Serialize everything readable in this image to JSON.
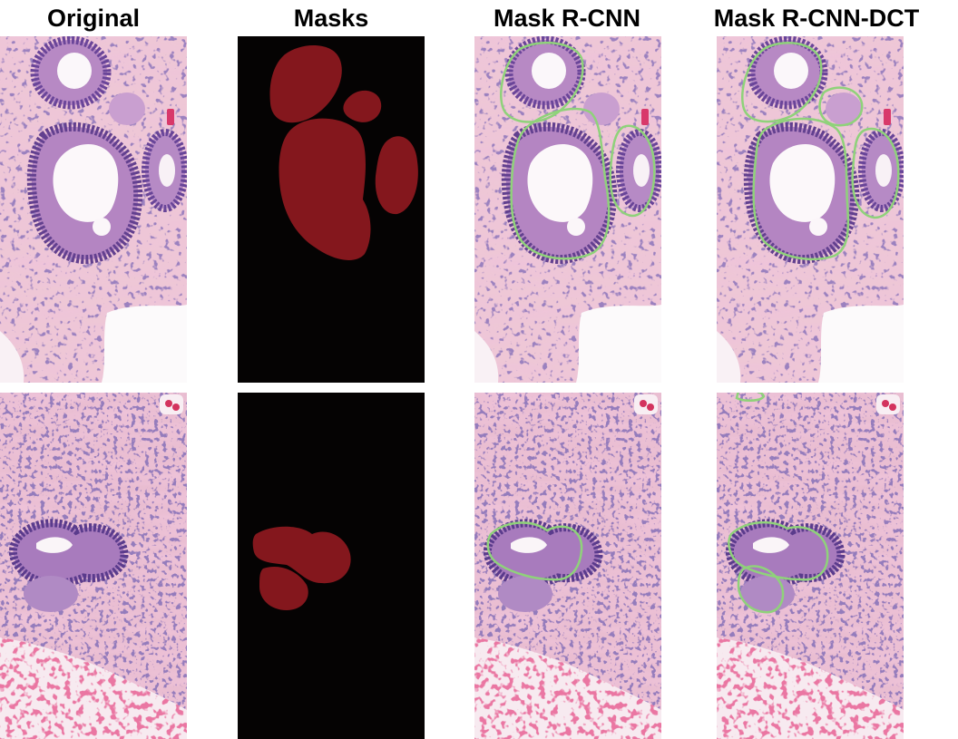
{
  "figure": {
    "columns": [
      {
        "key": "original",
        "title": "Original"
      },
      {
        "key": "masks",
        "title": "Masks"
      },
      {
        "key": "mask_rcnn",
        "title": "Mask R-CNN"
      },
      {
        "key": "mask_rcnn_dct",
        "title": "Mask R-CNN-DCT"
      }
    ],
    "rows": [
      {
        "key": "sample_1"
      },
      {
        "key": "sample_2"
      }
    ],
    "colors": {
      "tissue_pink": "#ecc3d3",
      "stroma_pink": "#e6a8c2",
      "nuclei_purple": "#5b3d8c",
      "gland_lumen": "#fbf8fa",
      "mask_background": "#050303",
      "mask_fill": "#84171d",
      "contour_green": "#8fd27a",
      "blood_red": "#cc3159"
    }
  }
}
